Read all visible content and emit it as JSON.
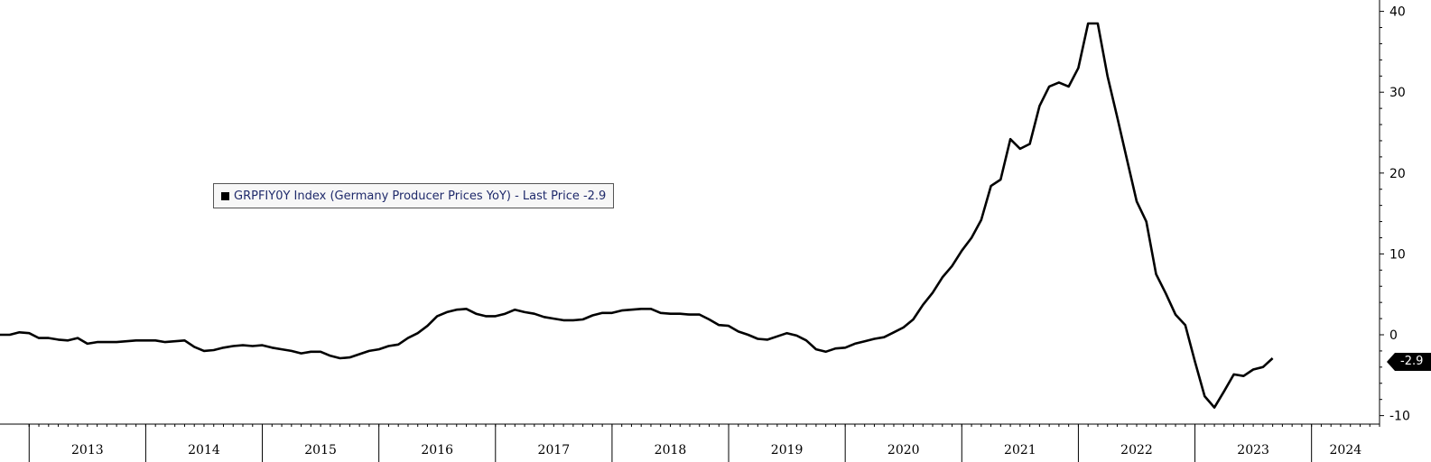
{
  "chart_data": {
    "type": "line",
    "legend": {
      "label": "GRPFIY0Y Index (Germany Producer Prices YoY) - Last Price -2.9",
      "placement": "upper-left"
    },
    "last_price_label": "-2.9",
    "y_axis": {
      "position": "right",
      "ylim": [
        -11,
        41
      ],
      "ticks": [
        40,
        30,
        20,
        10,
        0,
        -10
      ]
    },
    "x_axis": {
      "xlim": [
        "2012-10",
        "2024-08"
      ],
      "year_labels": [
        "2013",
        "2014",
        "2015",
        "2016",
        "2017",
        "2018",
        "2019",
        "2020",
        "2021",
        "2022",
        "2023",
        "2024"
      ]
    },
    "grid": false,
    "series": [
      {
        "color": "#000000",
        "points": [
          [
            "2012-10",
            0.0
          ],
          [
            "2012-11",
            0.0
          ],
          [
            "2012-12",
            0.3
          ],
          [
            "2013-01",
            0.2
          ],
          [
            "2013-02",
            -0.4
          ],
          [
            "2013-03",
            -0.4
          ],
          [
            "2013-04",
            -0.6
          ],
          [
            "2013-05",
            -0.7
          ],
          [
            "2013-06",
            -0.4
          ],
          [
            "2013-07",
            -1.1
          ],
          [
            "2013-08",
            -0.9
          ],
          [
            "2013-09",
            -0.9
          ],
          [
            "2013-10",
            -0.9
          ],
          [
            "2013-11",
            -0.8
          ],
          [
            "2013-12",
            -0.7
          ],
          [
            "2014-01",
            -0.7
          ],
          [
            "2014-02",
            -0.7
          ],
          [
            "2014-03",
            -0.9
          ],
          [
            "2014-04",
            -0.8
          ],
          [
            "2014-05",
            -0.7
          ],
          [
            "2014-06",
            -1.5
          ],
          [
            "2014-07",
            -2.0
          ],
          [
            "2014-08",
            -1.9
          ],
          [
            "2014-09",
            -1.6
          ],
          [
            "2014-10",
            -1.4
          ],
          [
            "2014-11",
            -1.3
          ],
          [
            "2014-12",
            -1.4
          ],
          [
            "2015-01",
            -1.3
          ],
          [
            "2015-02",
            -1.6
          ],
          [
            "2015-03",
            -1.8
          ],
          [
            "2015-04",
            -2.0
          ],
          [
            "2015-05",
            -2.3
          ],
          [
            "2015-06",
            -2.1
          ],
          [
            "2015-07",
            -2.1
          ],
          [
            "2015-08",
            -2.6
          ],
          [
            "2015-09",
            -2.9
          ],
          [
            "2015-10",
            -2.8
          ],
          [
            "2015-11",
            -2.4
          ],
          [
            "2015-12",
            -2.0
          ],
          [
            "2016-01",
            -1.8
          ],
          [
            "2016-02",
            -1.4
          ],
          [
            "2016-03",
            -1.2
          ],
          [
            "2016-04",
            -0.4
          ],
          [
            "2016-05",
            0.2
          ],
          [
            "2016-06",
            1.1
          ],
          [
            "2016-07",
            2.3
          ],
          [
            "2016-08",
            2.8
          ],
          [
            "2016-09",
            3.1
          ],
          [
            "2016-10",
            3.2
          ],
          [
            "2016-11",
            2.6
          ],
          [
            "2016-12",
            2.3
          ],
          [
            "2017-01",
            2.3
          ],
          [
            "2017-02",
            2.6
          ],
          [
            "2017-03",
            3.1
          ],
          [
            "2017-04",
            2.8
          ],
          [
            "2017-05",
            2.6
          ],
          [
            "2017-06",
            2.2
          ],
          [
            "2017-07",
            2.0
          ],
          [
            "2017-08",
            1.8
          ],
          [
            "2017-09",
            1.8
          ],
          [
            "2017-10",
            1.9
          ],
          [
            "2017-11",
            2.4
          ],
          [
            "2017-12",
            2.7
          ],
          [
            "2018-01",
            2.7
          ],
          [
            "2018-02",
            3.0
          ],
          [
            "2018-03",
            3.1
          ],
          [
            "2018-04",
            3.2
          ],
          [
            "2018-05",
            3.2
          ],
          [
            "2018-06",
            2.7
          ],
          [
            "2018-07",
            2.6
          ],
          [
            "2018-08",
            2.6
          ],
          [
            "2018-09",
            2.5
          ],
          [
            "2018-10",
            2.5
          ],
          [
            "2018-11",
            1.9
          ],
          [
            "2018-12",
            1.2
          ],
          [
            "2019-01",
            1.1
          ],
          [
            "2019-02",
            0.4
          ],
          [
            "2019-03",
            0.0
          ],
          [
            "2019-04",
            -0.5
          ],
          [
            "2019-05",
            -0.6
          ],
          [
            "2019-06",
            -0.2
          ],
          [
            "2019-07",
            0.2
          ],
          [
            "2019-08",
            -0.1
          ],
          [
            "2019-09",
            -0.7
          ],
          [
            "2019-10",
            -1.8
          ],
          [
            "2019-11",
            -2.1
          ],
          [
            "2019-12",
            -1.7
          ],
          [
            "2020-01",
            -1.6
          ],
          [
            "2020-02",
            -1.1
          ],
          [
            "2020-03",
            -0.8
          ],
          [
            "2020-04",
            -0.5
          ],
          [
            "2020-05",
            -0.3
          ],
          [
            "2020-06",
            0.3
          ],
          [
            "2020-07",
            0.9
          ],
          [
            "2020-08",
            1.9
          ],
          [
            "2020-09",
            3.7
          ],
          [
            "2020-10",
            5.2
          ],
          [
            "2020-11",
            7.1
          ],
          [
            "2020-12",
            8.5
          ],
          [
            "2021-01",
            10.4
          ],
          [
            "2021-02",
            12.0
          ],
          [
            "2021-03",
            14.2
          ],
          [
            "2021-04",
            18.4
          ],
          [
            "2021-05",
            19.2
          ],
          [
            "2021-06",
            24.2
          ],
          [
            "2021-07",
            23.0
          ],
          [
            "2021-08",
            23.6
          ],
          [
            "2021-09",
            28.3
          ],
          [
            "2021-10",
            30.7
          ],
          [
            "2021-11",
            31.2
          ],
          [
            "2021-12",
            30.7
          ],
          [
            "2022-01",
            33.0
          ],
          [
            "2022-02",
            38.5
          ],
          [
            "2022-03",
            38.5
          ],
          [
            "2022-04",
            32.0
          ],
          [
            "2022-05",
            26.9
          ],
          [
            "2022-06",
            21.7
          ],
          [
            "2022-07",
            16.5
          ],
          [
            "2022-08",
            14.0
          ],
          [
            "2022-09",
            7.5
          ],
          [
            "2022-10",
            5.1
          ],
          [
            "2022-11",
            2.5
          ],
          [
            "2022-12",
            1.2
          ],
          [
            "2023-01",
            -3.3
          ],
          [
            "2023-02",
            -7.6
          ],
          [
            "2023-03",
            -9.0
          ],
          [
            "2023-04",
            -7.0
          ],
          [
            "2023-05",
            -4.9
          ],
          [
            "2023-06",
            -5.1
          ],
          [
            "2023-07",
            -4.3
          ],
          [
            "2023-08",
            -4.0
          ],
          [
            "2023-09",
            -2.9
          ]
        ]
      }
    ]
  }
}
